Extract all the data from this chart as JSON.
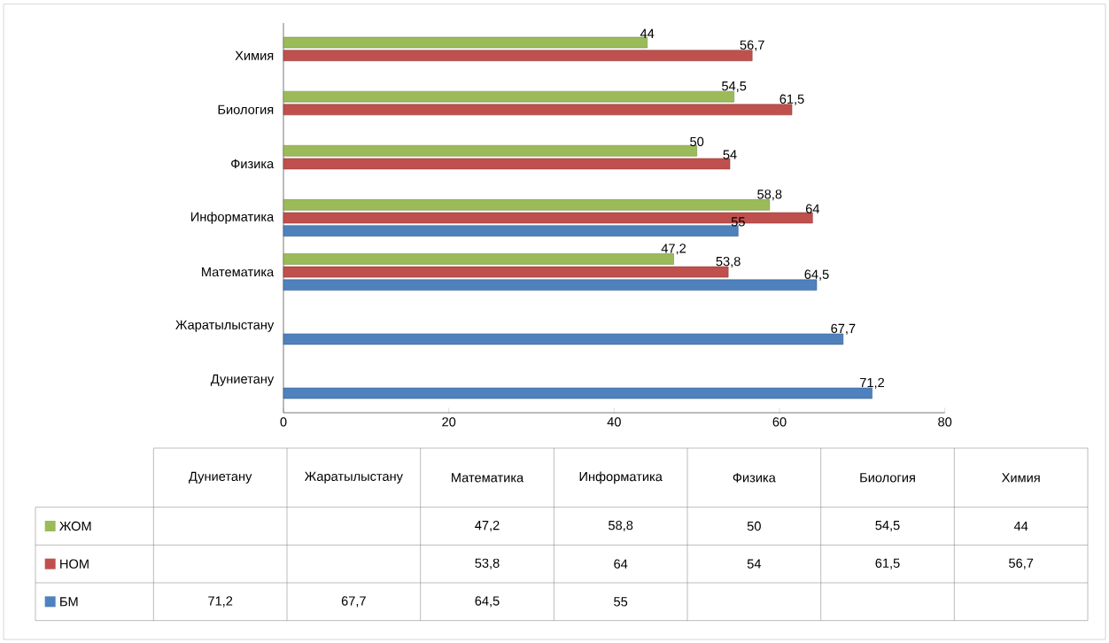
{
  "chart_data": {
    "type": "bar",
    "orientation": "horizontal",
    "categories": [
      "Химия",
      "Биология",
      "Физика",
      "Информатика",
      "Математика",
      "Жаратылыстану",
      "Дуниетану"
    ],
    "series": [
      {
        "name": "ЖОМ",
        "color": "#9bbb59",
        "values": [
          44,
          54.5,
          50,
          58.8,
          47.2,
          null,
          null
        ],
        "value_labels": [
          "44",
          "54,5",
          "50",
          "58,8",
          "47,2",
          null,
          null
        ]
      },
      {
        "name": "НОМ",
        "color": "#c0504d",
        "values": [
          56.7,
          61.5,
          54,
          64,
          53.8,
          null,
          null
        ],
        "value_labels": [
          "56,7",
          "61,5",
          "54",
          "64",
          "53,8",
          null,
          null
        ]
      },
      {
        "name": "БМ",
        "color": "#4f81bd",
        "values": [
          null,
          null,
          null,
          55,
          64.5,
          67.7,
          71.2
        ],
        "value_labels": [
          null,
          null,
          null,
          "55",
          "64,5",
          "67,7",
          "71,2"
        ]
      }
    ],
    "xlim": [
      0,
      80
    ],
    "xticks": [
      0,
      20,
      40,
      60,
      80
    ],
    "legend": "bottom left",
    "grid": false
  }
}
